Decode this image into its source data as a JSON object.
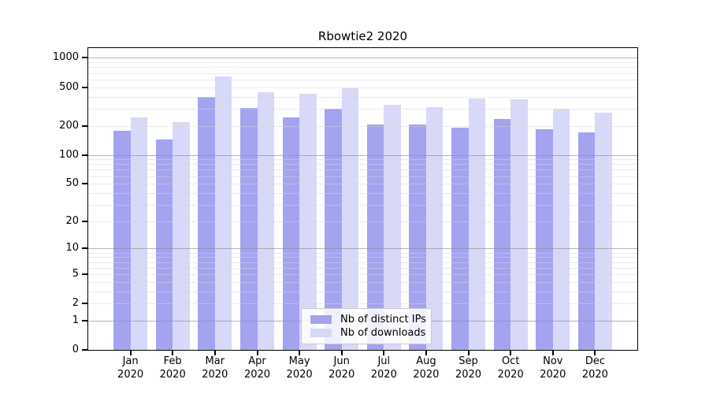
{
  "chart_data": {
    "type": "bar",
    "title": "Rbowtie2 2020",
    "categories": [
      "Jan 2020",
      "Feb 2020",
      "Mar 2020",
      "Apr 2020",
      "May 2020",
      "Jun 2020",
      "Jul 2020",
      "Aug 2020",
      "Sep 2020",
      "Oct 2020",
      "Nov 2020",
      "Dec 2020"
    ],
    "series": [
      {
        "name": "Nb of distinct IPs",
        "color": "#a3a3f0",
        "values": [
          177,
          144,
          395,
          307,
          245,
          298,
          206,
          208,
          190,
          237,
          184,
          172
        ]
      },
      {
        "name": "Nb of downloads",
        "color": "#d8d8f8",
        "values": [
          242,
          218,
          648,
          441,
          428,
          490,
          327,
          313,
          380,
          377,
          302,
          271
        ]
      }
    ],
    "yscale": "log(value+1)",
    "yticks": [
      1000,
      500,
      200,
      100,
      50,
      20,
      10,
      5,
      2,
      1,
      0
    ],
    "ylim": [
      0,
      1260
    ],
    "xlabel": "",
    "ylabel": "",
    "grid": "horizontal, minor and major, drawn over bars",
    "legend_position": "inside lower center"
  },
  "colors": {
    "grid_major": "#b5b5b5",
    "grid_minor": "#ececec",
    "axis": "#000000",
    "background": "#ffffff"
  }
}
